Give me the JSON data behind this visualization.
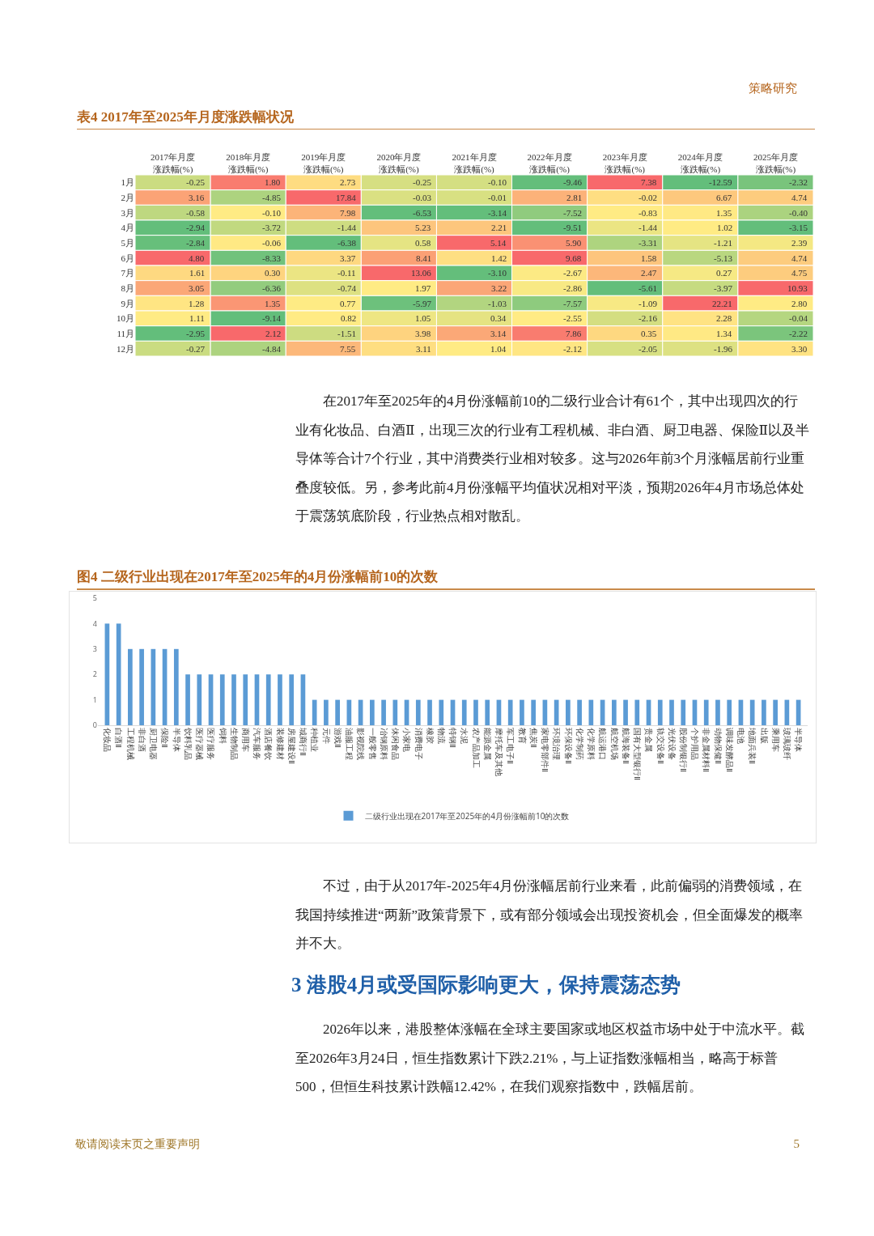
{
  "chart_data": [
    {
      "type": "heatmap",
      "title": "表4 2017年至2025年月度涨跌幅状况",
      "categories": [
        "2017年月度涨跌幅(%)",
        "2018年月度涨跌幅(%)",
        "2019年月度涨跌幅(%)",
        "2020年月度涨跌幅(%)",
        "2021年月度涨跌幅(%)",
        "2022年月度涨跌幅(%)",
        "2023年月度涨跌幅(%)",
        "2024年月度涨跌幅(%)",
        "2025年月度涨跌幅(%)"
      ],
      "y_categories": [
        "1月",
        "2月",
        "3月",
        "4月",
        "5月",
        "6月",
        "7月",
        "8月",
        "9月",
        "10月",
        "11月",
        "12月"
      ],
      "cells": [
        [
          -0.25,
          1.8,
          2.73,
          -0.25,
          -0.1,
          -9.46,
          7.38,
          -12.59,
          -2.32
        ],
        [
          3.16,
          -4.85,
          17.84,
          -0.03,
          -0.01,
          2.81,
          -0.02,
          6.67,
          4.74
        ],
        [
          -0.58,
          -0.1,
          7.98,
          -6.53,
          -3.14,
          -7.52,
          -0.83,
          1.35,
          -0.4
        ],
        [
          -2.94,
          -3.72,
          -1.44,
          5.23,
          2.21,
          -9.51,
          -1.44,
          1.02,
          -3.15
        ],
        [
          -2.84,
          -0.06,
          -6.38,
          0.58,
          5.14,
          5.9,
          -3.31,
          -1.21,
          2.39
        ],
        [
          4.8,
          -8.33,
          3.37,
          8.41,
          1.42,
          9.68,
          1.58,
          -5.13,
          4.74
        ],
        [
          1.61,
          0.3,
          -0.11,
          13.06,
          -3.1,
          -2.67,
          2.47,
          0.27,
          4.75
        ],
        [
          3.05,
          -6.36,
          -0.74,
          1.97,
          3.22,
          -2.86,
          -5.61,
          -3.97,
          10.93
        ],
        [
          1.28,
          1.35,
          0.77,
          -5.97,
          -1.03,
          -7.57,
          -1.09,
          22.21,
          2.8
        ],
        [
          1.11,
          -9.14,
          0.82,
          1.05,
          0.34,
          -2.55,
          -2.16,
          2.28,
          -0.04
        ],
        [
          -2.95,
          2.12,
          -1.51,
          3.98,
          3.14,
          7.86,
          0.35,
          1.34,
          -2.22
        ],
        [
          -0.27,
          -4.84,
          7.55,
          3.11,
          1.04,
          -2.12,
          -2.05,
          -1.96,
          3.3
        ]
      ],
      "cell_labels": [
        [
          "-0.25",
          "1.80",
          "2.73",
          "-0.25",
          "-0.10",
          "-9.46",
          "7.38",
          "-12.59",
          "-2.32"
        ],
        [
          "3.16",
          "-4.85",
          "17.84",
          "-0.03",
          "-0.01",
          "2.81",
          "-0.02",
          "6.67",
          "4.74"
        ],
        [
          "-0.58",
          "-0.10",
          "7.98",
          "-6.53",
          "-3.14",
          "-7.52",
          "-0.83",
          "1.35",
          "-0.40"
        ],
        [
          "-2.94",
          "-3.72",
          "-1.44",
          "5.23",
          "2.21",
          "-9.51",
          "-1.44",
          "1.02",
          "-3.15"
        ],
        [
          "-2.84",
          "-0.06",
          "-6.38",
          "0.58",
          "5.14",
          "5.90",
          "-3.31",
          "-1.21",
          "2.39"
        ],
        [
          "4.80",
          "-8.33",
          "3.37",
          "8.41",
          "1.42",
          "9.68",
          "1.58",
          "-5.13",
          "4.74"
        ],
        [
          "1.61",
          "0.30",
          "-0.11",
          "13.06",
          "-3.10",
          "-2.67",
          "2.47",
          "0.27",
          "4.75"
        ],
        [
          "3.05",
          "-6.36",
          "-0.74",
          "1.97",
          "3.22",
          "-2.86",
          "-5.61",
          "-3.97",
          "10.93"
        ],
        [
          "1.28",
          "1.35",
          "0.77",
          "-5.97",
          "-1.03",
          "-7.57",
          "-1.09",
          "22.21",
          "2.80"
        ],
        [
          "1.11",
          "-9.14",
          "0.82",
          "1.05",
          "0.34",
          "-2.55",
          "-2.16",
          "2.28",
          "-0.04"
        ],
        [
          "-2.95",
          "2.12",
          "-1.51",
          "3.98",
          "3.14",
          "7.86",
          "0.35",
          "1.34",
          "-2.22"
        ],
        [
          "-0.27",
          "-4.84",
          "7.55",
          "3.11",
          "1.04",
          "-2.12",
          "-2.05",
          "-1.96",
          "3.30"
        ]
      ],
      "annotations": [
        "策略研究",
        "在2017年至2025年的4月份涨幅前10的二级行业合计有61个，其中出现四次的行业有化妆品、白酒Ⅱ，出现三次的行业有工程机械、非白酒、厨卫电器、保险Ⅱ以及半导体等合计7个行业，其中消费类行业相对较多。这与2026年前3个月涨幅居前行业重叠度较低。另，参考此前4月份涨幅平均值状况相对平淡，预期2026年4月市场总体处于震荡筑底阶段，行业热点相对散乱。"
      ]
    },
    {
      "type": "bar",
      "title": "图4 二级行业出现在2017年至2025年的4月份涨幅前10的次数",
      "categories": [
        "化妆品",
        "白酒Ⅱ",
        "工程机械",
        "非白酒",
        "厨卫电器",
        "保险Ⅱ",
        "半导体",
        "饮料乳品",
        "医疗器械",
        "医疗服务",
        "饲料",
        "生物制品",
        "商用车",
        "汽车服务",
        "酒店餐饮",
        "装修建材",
        "房屋建设Ⅱ",
        "城商行Ⅱ",
        "种植业",
        "元件",
        "游戏Ⅱ",
        "油服工程",
        "影视院线",
        "一般零售",
        "冶钢原料",
        "休闲食品",
        "小家电",
        "消费电子",
        "橡胶",
        "物流",
        "特钢Ⅱ",
        "水泥",
        "农产品加工",
        "能源金属",
        "摩托车及其他",
        "军工电子Ⅱ",
        "教育",
        "焦炭Ⅱ",
        "家电零部件Ⅱ",
        "环境治理",
        "环保设备Ⅱ",
        "化学制药",
        "化学原料",
        "航运港口",
        "航空机场",
        "航海装备Ⅱ",
        "国有大型银行Ⅱ",
        "贵金属",
        "轨交设备Ⅱ",
        "光伏设备",
        "股份制银行Ⅱ",
        "个护用品",
        "非金属材料Ⅱ",
        "动物保健Ⅱ",
        "调味发酵品Ⅱ",
        "电池",
        "地面兵装Ⅱ",
        "出版",
        "乘用车",
        "玻璃玻纤",
        "半导体"
      ],
      "series": [
        {
          "name": "二级行业出现在2017年至2025年的4月份涨幅前10的次数",
          "color": "#5b9bd5",
          "values": [
            4,
            4,
            3,
            3,
            3,
            3,
            3,
            2,
            2,
            2,
            2,
            2,
            2,
            2,
            2,
            2,
            2,
            2,
            1,
            1,
            1,
            1,
            1,
            1,
            1,
            1,
            1,
            1,
            1,
            1,
            1,
            1,
            1,
            1,
            1,
            1,
            1,
            1,
            1,
            1,
            1,
            1,
            1,
            1,
            1,
            1,
            1,
            1,
            1,
            1,
            1,
            1,
            1,
            1,
            1,
            1,
            1,
            1,
            1,
            1,
            1
          ]
        }
      ],
      "ylim": [
        0,
        5
      ],
      "yticks": [
        0,
        1,
        2,
        3,
        4,
        5
      ],
      "grid": false,
      "legend": "bottom",
      "annotations": [
        "不过，由于从2017年-2025年4月份涨幅居前行业来看，此前偏弱的消费领域，在我国持续推进“两新”政策背景下，或有部分领域会出现投资机会，但全面爆发的概率并不大。",
        "3 港股4月或受国际影响更大，保持震荡态势",
        "2026年以来，港股整体涨幅在全球主要国家或地区权益市场中处于中流水平。截至2026年3月24日，恒生指数累计下跌2.21%，与上证指数涨幅相当，略高于标普500，但恒生科技累计跌幅12.42%，在我们观察指数中，跌幅居前。",
        "敬请阅读末页之重要声明",
        "5"
      ]
    }
  ]
}
